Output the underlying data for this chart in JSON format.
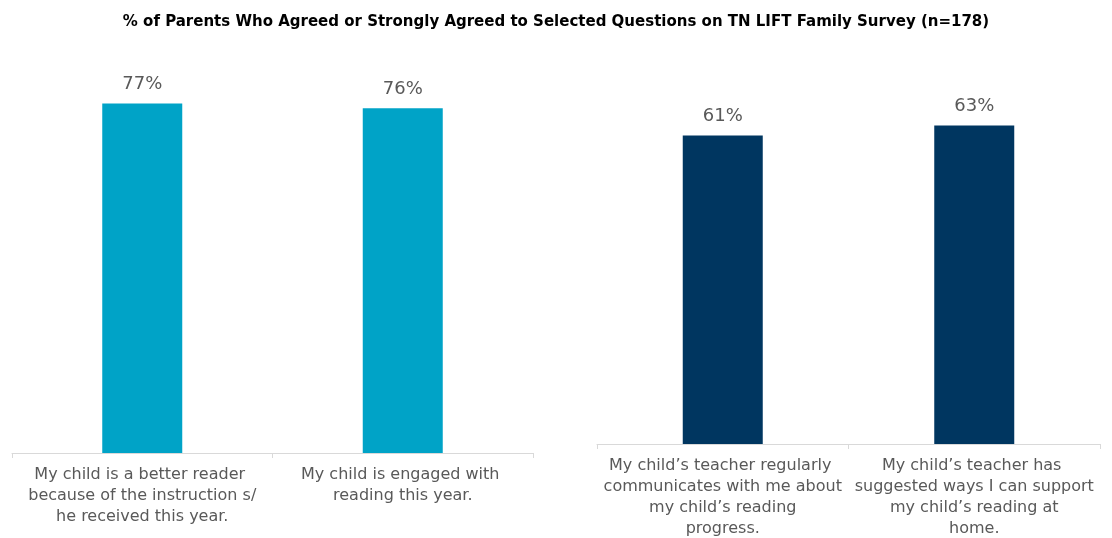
{
  "chart_data": [
    {
      "type": "bar",
      "title": "% of Parents Who Agreed or Strongly Agreed to Selected Questions on TN LIFT Family Survey (n=178)",
      "categories": [
        "My child is a better reader because of the instruction s/he received this year.",
        "My child is engaged with reading this year."
      ],
      "values": [
        77,
        76
      ],
      "color": "#00a3c7",
      "value_labels": [
        "77%",
        "76%"
      ]
    },
    {
      "type": "bar",
      "categories": [
        "My child’s teacher regularly communicates with me about my child’s reading progress.",
        "My child’s teacher has suggested ways I can support my child’s reading at home."
      ],
      "values": [
        61,
        63
      ],
      "color": "#003660",
      "value_labels": [
        "61%",
        "63%"
      ]
    }
  ]
}
